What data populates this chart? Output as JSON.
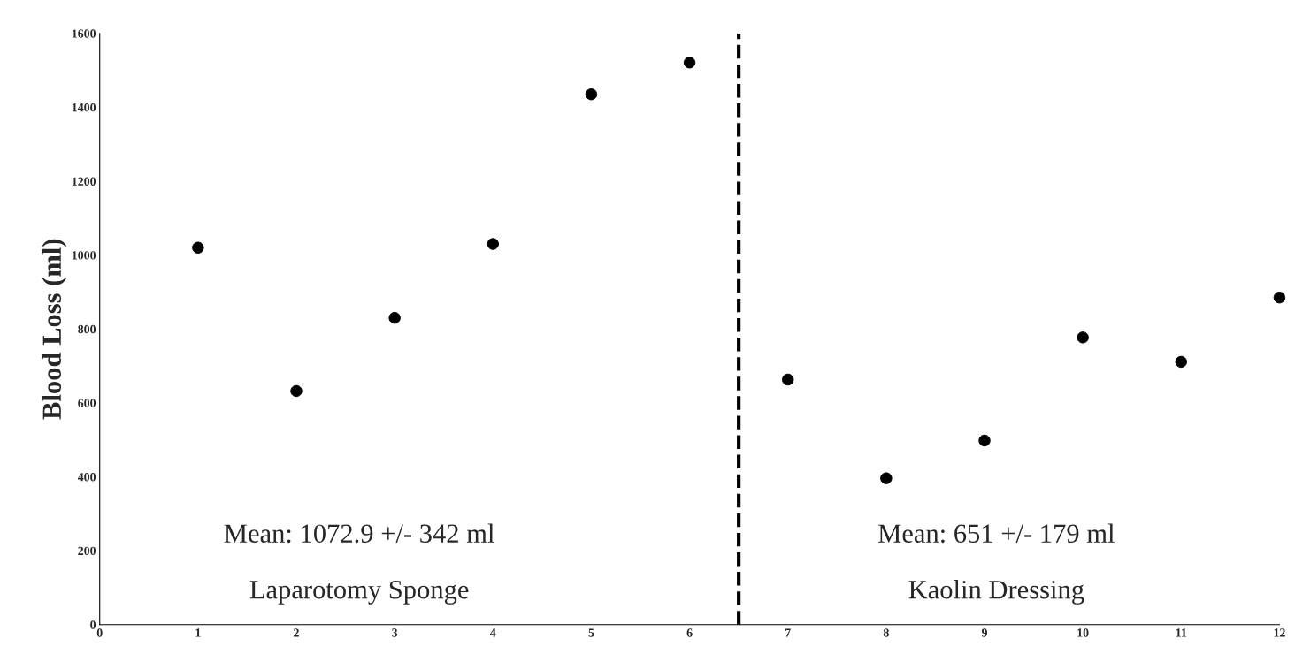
{
  "chart_data": {
    "type": "scatter",
    "ylabel": "Blood Loss (ml)",
    "x": [
      1,
      2,
      3,
      4,
      5,
      6,
      7,
      8,
      9,
      10,
      11,
      12
    ],
    "series": [
      {
        "color": "#000000",
        "values": [
          1020,
          632,
          830,
          1030,
          1435,
          1521,
          663,
          396,
          498,
          777,
          711,
          885
        ]
      }
    ],
    "xlim": [
      0,
      12
    ],
    "xticks": [
      0,
      1,
      2,
      3,
      4,
      5,
      6,
      7,
      8,
      9,
      10,
      11,
      12
    ],
    "ylim": [
      0,
      1600
    ],
    "yticks": [
      0,
      200,
      400,
      600,
      800,
      1000,
      1200,
      1400,
      1600
    ],
    "ref_lines": [
      {
        "axis": "x",
        "value": 6.5,
        "color": "#000000",
        "line_style": "dashed"
      }
    ],
    "annotations": [
      "Mean: 1072.9 +/- 342 ml",
      "Laparotomy Sponge",
      "Mean: 651 +/- 179 ml",
      "Kaolin Dressing"
    ],
    "marker": "circle",
    "grid": false
  }
}
